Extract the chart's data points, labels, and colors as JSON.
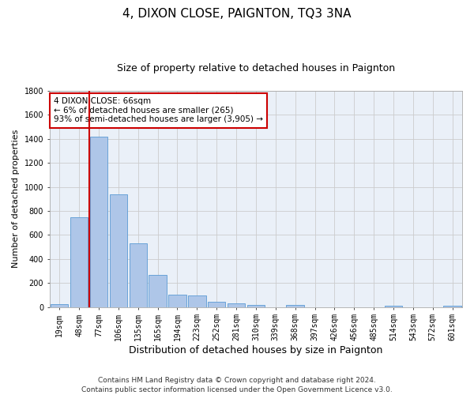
{
  "title": "4, DIXON CLOSE, PAIGNTON, TQ3 3NA",
  "subtitle": "Size of property relative to detached houses in Paignton",
  "xlabel": "Distribution of detached houses by size in Paignton",
  "ylabel": "Number of detached properties",
  "categories": [
    "19sqm",
    "48sqm",
    "77sqm",
    "106sqm",
    "135sqm",
    "165sqm",
    "194sqm",
    "223sqm",
    "252sqm",
    "281sqm",
    "310sqm",
    "339sqm",
    "368sqm",
    "397sqm",
    "426sqm",
    "456sqm",
    "485sqm",
    "514sqm",
    "543sqm",
    "572sqm",
    "601sqm"
  ],
  "values": [
    22,
    745,
    1420,
    940,
    530,
    265,
    105,
    95,
    40,
    30,
    18,
    0,
    15,
    0,
    0,
    0,
    0,
    12,
    0,
    0,
    12
  ],
  "bar_color": "#aec6e8",
  "bar_edgecolor": "#5a9ad4",
  "grid_color": "#cccccc",
  "vline_color": "#cc0000",
  "annotation_box_text": "4 DIXON CLOSE: 66sqm\n← 6% of detached houses are smaller (265)\n93% of semi-detached houses are larger (3,905) →",
  "annotation_box_color": "#cc0000",
  "ylim": [
    0,
    1800
  ],
  "yticks": [
    0,
    200,
    400,
    600,
    800,
    1000,
    1200,
    1400,
    1600,
    1800
  ],
  "footer": "Contains HM Land Registry data © Crown copyright and database right 2024.\nContains public sector information licensed under the Open Government Licence v3.0.",
  "background_color": "#ffffff",
  "plot_bg_color": "#eaf0f8",
  "title_fontsize": 11,
  "subtitle_fontsize": 9,
  "xlabel_fontsize": 9,
  "ylabel_fontsize": 8,
  "tick_fontsize": 7,
  "footer_fontsize": 6.5,
  "annotation_fontsize": 7.5
}
